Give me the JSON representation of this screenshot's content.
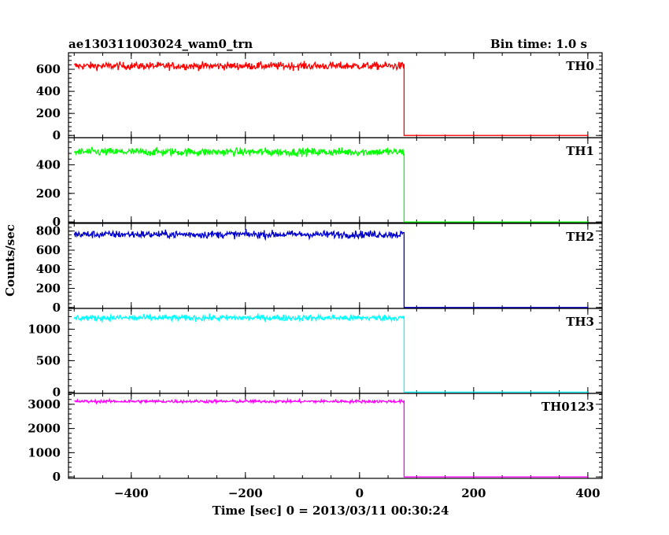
{
  "header": {
    "title": "ae130311003024_wam0_trn",
    "bin_time": "Bin time: 1.0 s"
  },
  "chart_data": {
    "type": "line",
    "title": "ae130311003024_wam0_trn",
    "xlabel": "Time [sec] 0 = 2013/03/11 00:30:24",
    "ylabel": "Counts/sec",
    "xlim": [
      -510,
      425
    ],
    "x_ticks": [
      -400,
      -200,
      0,
      200,
      400
    ],
    "x_tick_labels": [
      "−400",
      "−200",
      "0",
      "200",
      "400"
    ],
    "step_time": 78,
    "x_start": -500,
    "x_end": 400,
    "grid": false,
    "series": [
      {
        "name": "TH0",
        "color": "#ff0000",
        "level_before": 630,
        "noise": 25,
        "level_after": 0,
        "ylim": [
          -20,
          750
        ],
        "y_ticks": [
          0,
          200,
          400,
          600
        ],
        "y_tick_labels": [
          "0",
          "200",
          "400",
          "600"
        ]
      },
      {
        "name": "TH1",
        "color": "#00ff00",
        "level_before": 490,
        "noise": 20,
        "level_after": 0,
        "ylim": [
          -5,
          590
        ],
        "y_ticks": [
          0,
          200,
          400
        ],
        "y_tick_labels": [
          "0",
          "200",
          "400"
        ]
      },
      {
        "name": "TH2",
        "color": "#0000cc",
        "level_before": 765,
        "noise": 28,
        "level_after": 0,
        "ylim": [
          -10,
          880
        ],
        "y_ticks": [
          0,
          200,
          400,
          600,
          800
        ],
        "y_tick_labels": [
          "0",
          "200",
          "400",
          "600",
          "800"
        ]
      },
      {
        "name": "TH3",
        "color": "#00ffff",
        "level_before": 1180,
        "noise": 35,
        "level_after": 0,
        "ylim": [
          -20,
          1330
        ],
        "y_ticks": [
          0,
          500,
          1000
        ],
        "y_tick_labels": [
          "0",
          "500",
          "1000"
        ]
      },
      {
        "name": "TH0123",
        "color": "#ff00ff",
        "level_before": 3120,
        "noise": 45,
        "level_after": 0,
        "ylim": [
          -60,
          3450
        ],
        "y_ticks": [
          0,
          1000,
          2000,
          3000
        ],
        "y_tick_labels": [
          "0",
          "1000",
          "2000",
          "3000"
        ]
      }
    ]
  }
}
